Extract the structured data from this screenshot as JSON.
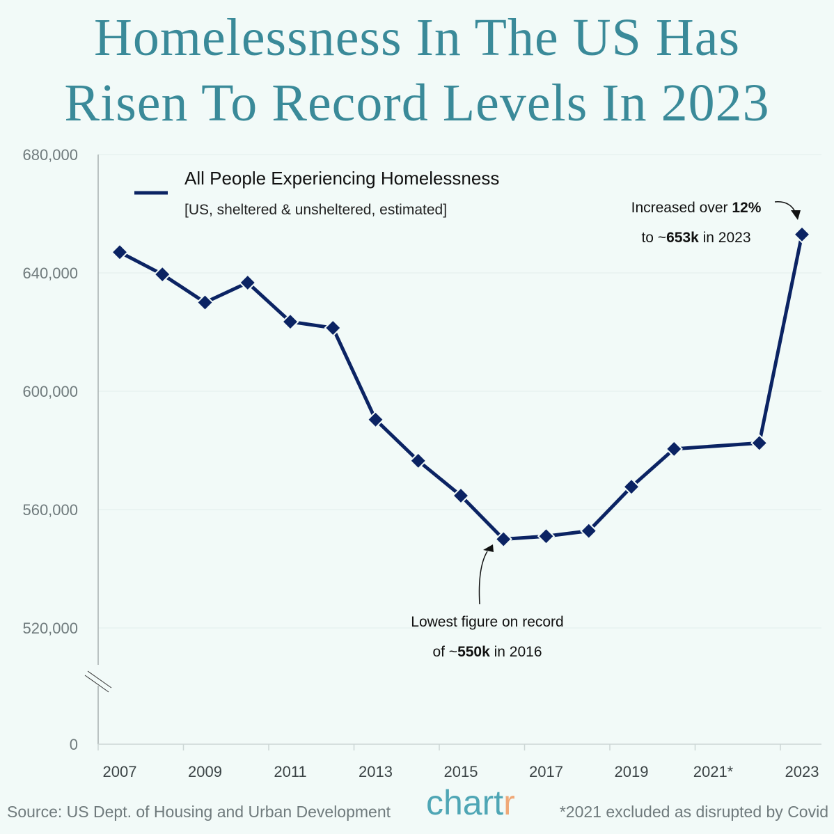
{
  "title_line1": "Homelessness In The US Has",
  "title_line2": "Risen To Record Levels In 2023",
  "source": "Source: US Dept. of Housing and Urban Development",
  "logo": "chartr",
  "footnote": "*2021 excluded as disrupted by Covid",
  "colors": {
    "title": "#3a8a99",
    "series": "#0b2363",
    "background": "#f2faf8"
  },
  "chart_data": {
    "type": "line",
    "title": "Homelessness In The US Has Risen To Record Levels In 2023",
    "legend": {
      "name": "All People Experiencing Homelessness",
      "subtitle": "[US, sheltered & unsheltered, estimated]",
      "placement": "top-left"
    },
    "x": [
      2007,
      2008,
      2009,
      2010,
      2011,
      2012,
      2013,
      2014,
      2015,
      2016,
      2017,
      2018,
      2019,
      2020,
      2022,
      2023
    ],
    "series": [
      {
        "name": "All People Experiencing Homelessness",
        "values": [
          647000,
          639500,
          630000,
          636700,
          623500,
          621400,
          590400,
          576500,
          564700,
          550000,
          551000,
          552800,
          567700,
          580500,
          582500,
          653000
        ]
      }
    ],
    "x_tick_labels": [
      "2007",
      "2009",
      "2011",
      "2013",
      "2015",
      "2017",
      "2019",
      "2021*",
      "2023"
    ],
    "y_tick_labels": [
      "680,000",
      "640,000",
      "600,000",
      "560,000",
      "520,000",
      "0"
    ],
    "y_ticks": [
      680000,
      640000,
      600000,
      560000,
      520000,
      0
    ],
    "ylim": [
      0,
      680000
    ],
    "y_axis_break": true,
    "grid": "horizontal",
    "annotations": [
      {
        "line1": "Increased over ",
        "line1_bold": "12%",
        "line2_pre": "to ~",
        "line2_bold": "653k",
        "line2_post": " in 2023",
        "year": 2023
      },
      {
        "line1": "Lowest figure on record",
        "line2_pre": "of ~",
        "line2_bold": "550k",
        "line2_post": " in 2016",
        "year": 2016
      }
    ]
  }
}
